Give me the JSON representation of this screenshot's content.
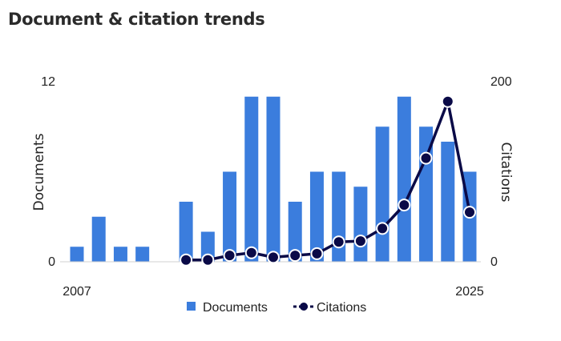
{
  "title": "Document & citation trends",
  "chart_data": {
    "type": "bar",
    "x": [
      2007,
      2008,
      2009,
      2010,
      2011,
      2012,
      2013,
      2014,
      2015,
      2016,
      2017,
      2018,
      2019,
      2020,
      2021,
      2022,
      2023,
      2024,
      2025
    ],
    "x_tick_labels": [
      "2007",
      "2025"
    ],
    "series": [
      {
        "name": "Documents",
        "type": "bar",
        "axis": "left",
        "color": "#3b7ddd",
        "values": [
          1,
          3,
          1,
          1,
          0,
          4,
          2,
          6,
          11,
          11,
          4,
          6,
          6,
          5,
          9,
          11,
          9,
          8,
          6
        ]
      },
      {
        "name": "Citations",
        "type": "line",
        "axis": "right",
        "color": "#0a0a47",
        "values": [
          null,
          null,
          null,
          null,
          null,
          2,
          2,
          7,
          10,
          5,
          7,
          9,
          22,
          23,
          37,
          63,
          115,
          178,
          55
        ]
      }
    ],
    "ylabel": "Documents",
    "y2label": "Citations",
    "ylim": [
      0,
      12
    ],
    "y2lim": [
      0,
      200
    ],
    "y_tick_labels": [
      "0",
      "12"
    ],
    "y2_tick_labels": [
      "0",
      "200"
    ],
    "grid": false,
    "legend": "bottom"
  }
}
